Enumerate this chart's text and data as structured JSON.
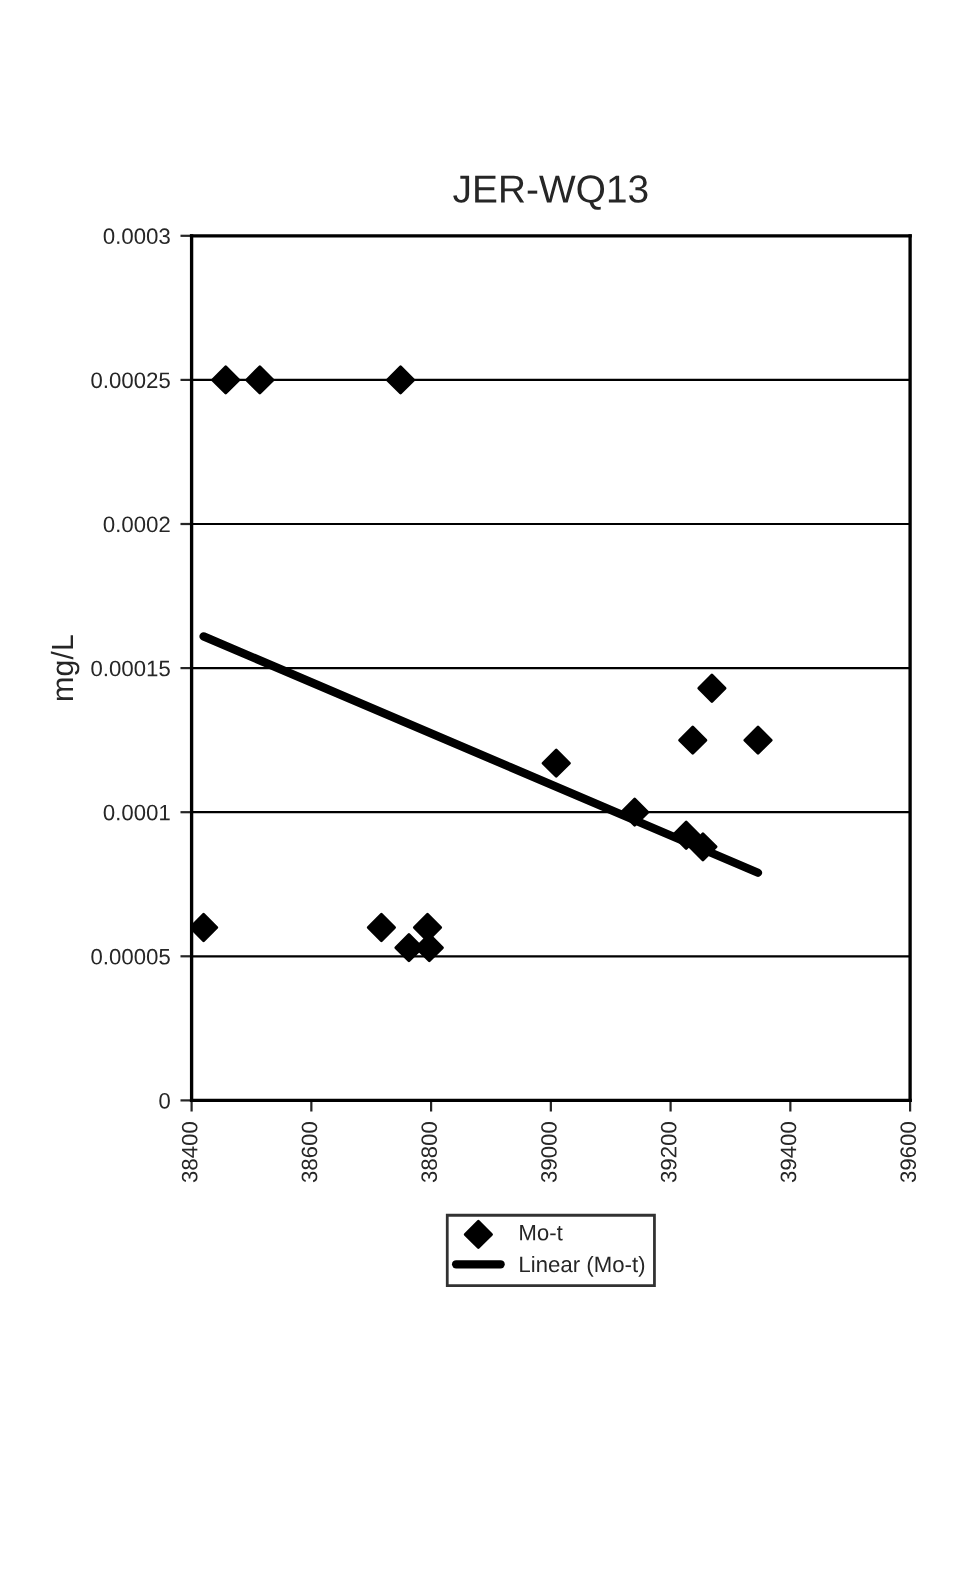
{
  "chart_data": {
    "type": "scatter",
    "title": "JER-WQ13",
    "ylabel": "mg/L",
    "xlim": [
      38400,
      39600
    ],
    "xticks": [
      38400,
      38600,
      38800,
      39000,
      39200,
      39400,
      39600
    ],
    "ylim": [
      0,
      0.0003
    ],
    "yticks": [
      {
        "value": 0,
        "label": "0"
      },
      {
        "value": 5e-05,
        "label": "0.00005"
      },
      {
        "value": 0.0001,
        "label": "0.0001"
      },
      {
        "value": 0.00015,
        "label": "0.00015"
      },
      {
        "value": 0.0002,
        "label": "0.0002"
      },
      {
        "value": 0.00025,
        "label": "0.00025"
      },
      {
        "value": 0.0003,
        "label": "0.0003"
      }
    ],
    "grid": "y",
    "legend": "right",
    "marker": "diamond",
    "series": [
      {
        "name": "Mo-t",
        "color": "#000000",
        "x": [
          38420,
          38457,
          38514,
          38717,
          38749,
          38763,
          38794,
          38797,
          39009,
          39140,
          39226,
          39237,
          39254,
          39269,
          39346
        ],
        "values": [
          6e-05,
          0.00025,
          0.00025,
          6e-05,
          0.00025,
          5.3e-05,
          6e-05,
          5.3e-05,
          0.000117,
          0.0001,
          9.2e-05,
          0.000125,
          8.8e-05,
          0.000143,
          0.000125
        ]
      },
      {
        "name": "Linear (Mo-t)",
        "type": "line",
        "color": "#000000",
        "marker": "none",
        "x": [
          38420,
          39346
        ],
        "values": [
          0.000161,
          7.9e-05
        ]
      }
    ]
  }
}
